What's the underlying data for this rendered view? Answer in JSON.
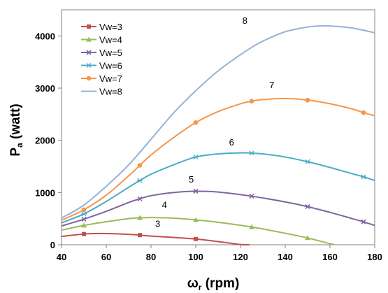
{
  "chart_data": {
    "type": "line",
    "xlabel": {
      "main": "ω",
      "sub": "r",
      "rest": " (rpm)"
    },
    "ylabel": {
      "main": "P",
      "sub": "a",
      "rest": " (watt)"
    },
    "xlim": [
      40,
      180
    ],
    "ylim": [
      0,
      4500
    ],
    "xticks": [
      40,
      60,
      80,
      100,
      120,
      140,
      160,
      180
    ],
    "yticks": [
      0,
      1000,
      2000,
      3000,
      4000
    ],
    "grid": false,
    "legend_position": "top-left",
    "series": [
      {
        "name": "Vw=3",
        "color": "#c0504d",
        "marker": "square",
        "label": "3",
        "x": [
          40,
          50,
          55,
          60,
          70,
          75,
          80,
          90,
          100,
          110,
          120,
          124
        ],
        "y": [
          160,
          205,
          215,
          215,
          200,
          185,
          165,
          140,
          110,
          60,
          5,
          0
        ],
        "marker_x": [
          50,
          75,
          100
        ]
      },
      {
        "name": "Vw=4",
        "color": "#9bbb59",
        "marker": "triangle",
        "label": "4",
        "x": [
          40,
          50,
          60,
          70,
          75,
          80,
          90,
          100,
          110,
          125,
          140,
          150,
          160,
          162
        ],
        "y": [
          280,
          370,
          440,
          500,
          515,
          520,
          510,
          475,
          430,
          340,
          220,
          130,
          20,
          0
        ],
        "marker_x": [
          50,
          75,
          100,
          125,
          150
        ]
      },
      {
        "name": "Vw=5",
        "color": "#8064a2",
        "marker": "x",
        "label": "5",
        "x": [
          40,
          50,
          60,
          70,
          75,
          80,
          90,
          100,
          110,
          125,
          140,
          150,
          160,
          170,
          175,
          180
        ],
        "y": [
          360,
          490,
          640,
          810,
          880,
          940,
          1000,
          1025,
          1010,
          930,
          820,
          730,
          620,
          500,
          440,
          370
        ],
        "marker_x": [
          50,
          75,
          100,
          125,
          150,
          175
        ]
      },
      {
        "name": "Vw=6",
        "color": "#4bacc6",
        "marker": "star",
        "label": "6",
        "x": [
          40,
          50,
          60,
          70,
          75,
          80,
          90,
          100,
          110,
          120,
          125,
          130,
          140,
          150,
          160,
          170,
          175,
          180
        ],
        "y": [
          420,
          590,
          830,
          1100,
          1230,
          1350,
          1530,
          1680,
          1740,
          1760,
          1755,
          1740,
          1680,
          1590,
          1480,
          1360,
          1300,
          1230
        ],
        "marker_x": [
          50,
          75,
          100,
          125,
          150,
          175
        ]
      },
      {
        "name": "Vw=7",
        "color": "#f79646",
        "marker": "circle",
        "label": "7",
        "x": [
          40,
          50,
          60,
          70,
          75,
          80,
          90,
          100,
          110,
          120,
          125,
          130,
          140,
          150,
          160,
          170,
          175,
          180
        ],
        "y": [
          470,
          670,
          950,
          1320,
          1520,
          1720,
          2050,
          2340,
          2550,
          2700,
          2750,
          2780,
          2800,
          2770,
          2700,
          2600,
          2530,
          2470
        ],
        "marker_x": [
          50,
          75,
          100,
          125,
          150,
          175
        ]
      },
      {
        "name": "Vw=8",
        "color": "#95b3d7",
        "marker": "none",
        "label": "8",
        "x": [
          40,
          50,
          60,
          70,
          80,
          90,
          100,
          110,
          120,
          125,
          130,
          140,
          150,
          155,
          160,
          170,
          180
        ],
        "y": [
          510,
          760,
          1120,
          1530,
          2020,
          2520,
          2950,
          3330,
          3640,
          3780,
          3900,
          4080,
          4170,
          4190,
          4190,
          4150,
          4060
        ],
        "marker_x": []
      }
    ],
    "curve_labels": [
      {
        "text": "3",
        "x": 83,
        "y": 340
      },
      {
        "text": "4",
        "x": 86,
        "y": 700
      },
      {
        "text": "5",
        "x": 98,
        "y": 1190
      },
      {
        "text": "6",
        "x": 116,
        "y": 1900
      },
      {
        "text": "7",
        "x": 134,
        "y": 3000
      },
      {
        "text": "8",
        "x": 122,
        "y": 4230
      }
    ]
  }
}
